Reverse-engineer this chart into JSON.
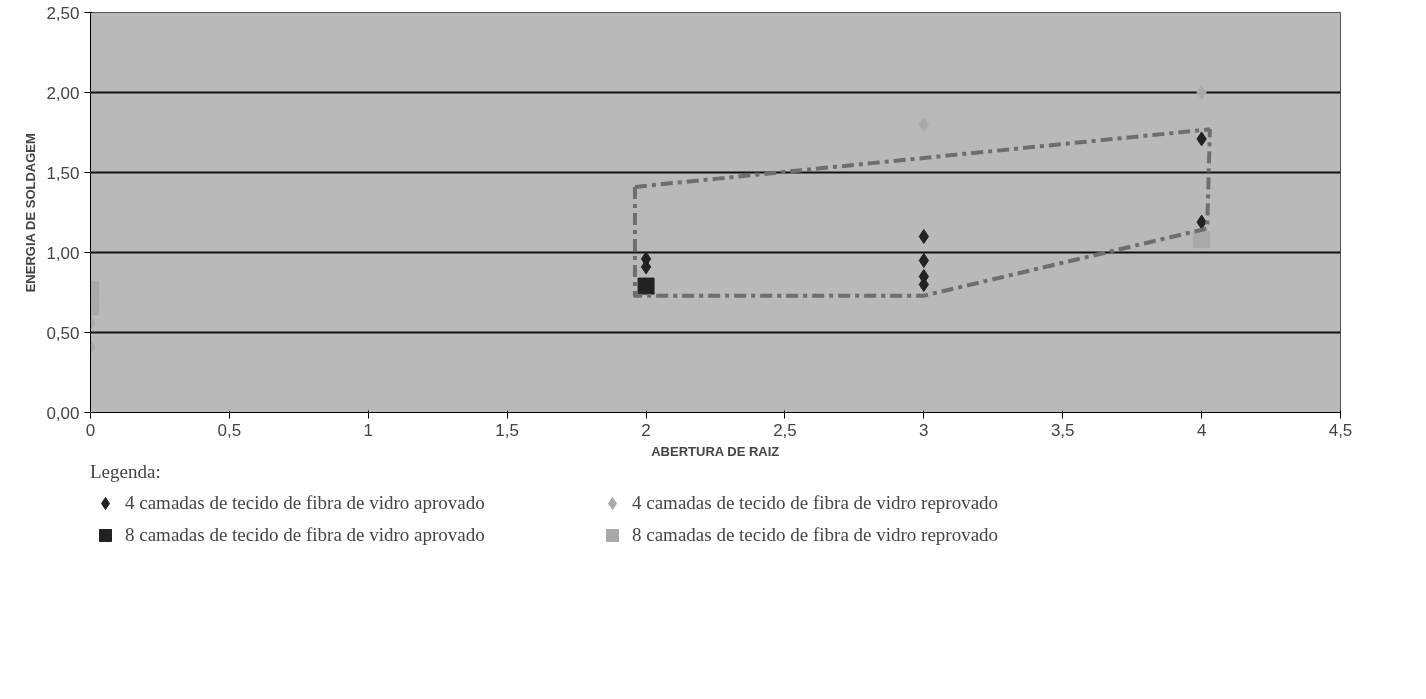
{
  "chart_data": {
    "type": "scatter",
    "xlabel": "ABERTURA DE RAIZ",
    "ylabel": "ENERGIA DE SOLDAGEM",
    "legend_title": "Legenda:",
    "legend": "bottom",
    "grid": "y",
    "xlim": [
      0,
      4.5
    ],
    "ylim": [
      0,
      2.5
    ],
    "xticks": [
      0,
      {
        "value": 0.5,
        "label": "0,5"
      },
      1,
      {
        "value": 1.5,
        "label": "1,5"
      },
      2,
      {
        "value": 2.5,
        "label": "2,5"
      },
      3,
      {
        "value": 3.5,
        "label": "3,5"
      },
      4,
      {
        "value": 4.5,
        "label": "4,5"
      }
    ],
    "yticks": [
      {
        "value": 0,
        "label": "0,00"
      },
      {
        "value": 0.5,
        "label": "0,50"
      },
      {
        "value": 1,
        "label": "1,00"
      },
      {
        "value": 1.5,
        "label": "1,50"
      },
      {
        "value": 2,
        "label": "2,00"
      },
      {
        "value": 2.5,
        "label": "2,50"
      }
    ],
    "series": [
      {
        "name": "4 camadas de tecido de fibra de vidro aprovado",
        "color": "#222222",
        "marker": "diamond",
        "x": [
          2,
          2,
          3,
          3,
          3,
          3,
          4,
          4
        ],
        "values": [
          0.96,
          0.91,
          1.1,
          0.95,
          0.85,
          0.8,
          1.71,
          1.19
        ]
      },
      {
        "name": "8 camadas de tecido de fibra de vidro aprovado",
        "color": "#222222",
        "marker": "square",
        "x": [
          2
        ],
        "values": [
          0.79
        ]
      },
      {
        "name": "4 camadas de tecido de fibra de vidro reprovado",
        "color": "#a9a9a9",
        "marker": "diamond",
        "x": [
          0,
          0,
          3,
          4
        ],
        "values": [
          0.56,
          0.41,
          1.8,
          2.0
        ]
      },
      {
        "name": "8 camadas de tecido de fibra de vidro reprovado",
        "color": "#a9a9a9",
        "marker": "square",
        "x": [
          0,
          0,
          4
        ],
        "values": [
          0.77,
          0.66,
          1.08
        ]
      },
      {
        "type": "line",
        "color": "#6e6e6e",
        "line_style": "dashed",
        "x": [
          1.96,
          1.96,
          3.0,
          4.02,
          4.03
        ],
        "values": [
          1.41,
          0.73,
          0.73,
          1.15,
          1.77
        ]
      },
      {
        "type": "line",
        "color": "#6e6e6e",
        "line_style": "dashed",
        "x": [
          1.96,
          4.03
        ],
        "values": [
          1.41,
          1.77
        ]
      }
    ]
  }
}
